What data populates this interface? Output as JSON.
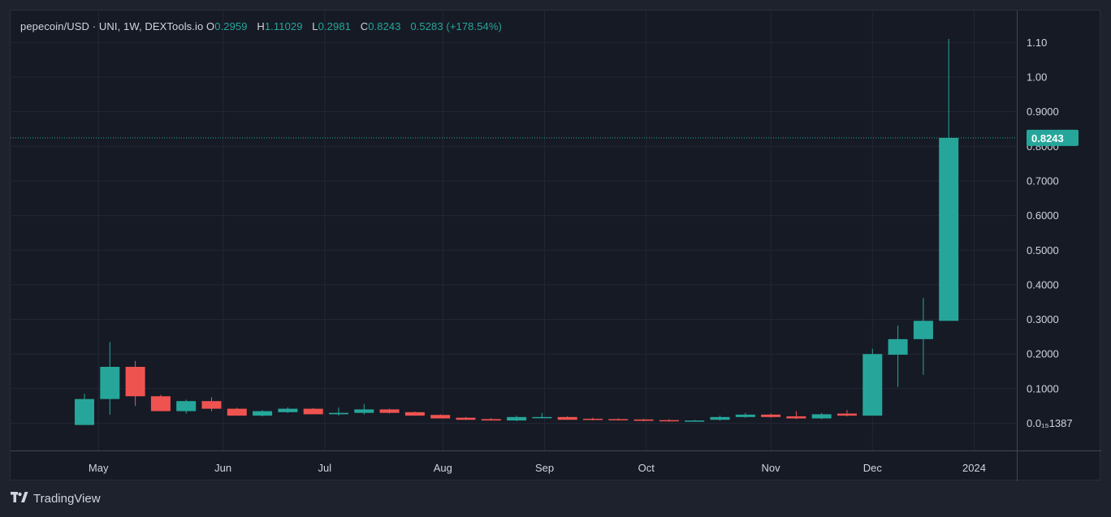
{
  "legend": {
    "symbol": "pepecoin/USD · UNI, 1W, DEXTools.io",
    "open_key": "O",
    "open": "0.2959",
    "high_key": "H",
    "high": "1.11029",
    "low_key": "L",
    "low": "0.2981",
    "close_key": "C",
    "close": "0.8243",
    "change": "0.5283 (+178.54%)"
  },
  "branding": {
    "name": "TradingView"
  },
  "colors": {
    "up": "#26a69a",
    "down": "#ef5350",
    "background": "#161a25",
    "grid": "#232733",
    "text": "#d1d4dc"
  },
  "chart_data": {
    "type": "candlestick",
    "interval": "1W",
    "y_scale": "linear",
    "ylim": [
      -0.08,
      1.2
    ],
    "y_ticks": [
      {
        "value": 0.0,
        "label": "0.0₁₅1387"
      },
      {
        "value": 0.1,
        "label": "0.1000"
      },
      {
        "value": 0.2,
        "label": "0.2000"
      },
      {
        "value": 0.3,
        "label": "0.3000"
      },
      {
        "value": 0.4,
        "label": "0.4000"
      },
      {
        "value": 0.5,
        "label": "0.5000"
      },
      {
        "value": 0.6,
        "label": "0.6000"
      },
      {
        "value": 0.7,
        "label": "0.7000"
      },
      {
        "value": 0.8,
        "label": "0.8000"
      },
      {
        "value": 0.9,
        "label": "0.9000"
      },
      {
        "value": 1.0,
        "label": "1.00"
      },
      {
        "value": 1.1,
        "label": "1.10"
      }
    ],
    "x_ticks": [
      {
        "index": 0.55,
        "label": "May"
      },
      {
        "index": 5.45,
        "label": "Jun"
      },
      {
        "index": 9.45,
        "label": "Jul"
      },
      {
        "index": 14.1,
        "label": "Aug"
      },
      {
        "index": 18.1,
        "label": "Sep"
      },
      {
        "index": 22.1,
        "label": "Oct"
      },
      {
        "index": 27.0,
        "label": "Nov"
      },
      {
        "index": 31.0,
        "label": "Dec"
      },
      {
        "index": 35.0,
        "label": "2024"
      }
    ],
    "last_price": {
      "value": 0.8243,
      "label": "0.8243"
    },
    "candles": [
      {
        "o": -0.005,
        "h": 0.085,
        "l": -0.005,
        "c": 0.07
      },
      {
        "o": 0.07,
        "h": 0.235,
        "l": 0.025,
        "c": 0.163
      },
      {
        "o": 0.163,
        "h": 0.18,
        "l": 0.05,
        "c": 0.078
      },
      {
        "o": 0.078,
        "h": 0.082,
        "l": 0.035,
        "c": 0.035
      },
      {
        "o": 0.035,
        "h": 0.068,
        "l": 0.028,
        "c": 0.064
      },
      {
        "o": 0.064,
        "h": 0.075,
        "l": 0.035,
        "c": 0.042
      },
      {
        "o": 0.042,
        "h": 0.045,
        "l": 0.022,
        "c": 0.022
      },
      {
        "o": 0.022,
        "h": 0.038,
        "l": 0.02,
        "c": 0.035
      },
      {
        "o": 0.032,
        "h": 0.046,
        "l": 0.03,
        "c": 0.042
      },
      {
        "o": 0.042,
        "h": 0.044,
        "l": 0.026,
        "c": 0.026
      },
      {
        "o": 0.026,
        "h": 0.045,
        "l": 0.022,
        "c": 0.03
      },
      {
        "o": 0.03,
        "h": 0.056,
        "l": 0.025,
        "c": 0.04
      },
      {
        "o": 0.04,
        "h": 0.042,
        "l": 0.028,
        "c": 0.03
      },
      {
        "o": 0.032,
        "h": 0.034,
        "l": 0.022,
        "c": 0.022
      },
      {
        "o": 0.024,
        "h": 0.026,
        "l": 0.014,
        "c": 0.014
      },
      {
        "o": 0.016,
        "h": 0.018,
        "l": 0.01,
        "c": 0.01
      },
      {
        "o": 0.012,
        "h": 0.015,
        "l": 0.008,
        "c": 0.008
      },
      {
        "o": 0.008,
        "h": 0.022,
        "l": 0.006,
        "c": 0.018
      },
      {
        "o": 0.016,
        "h": 0.03,
        "l": 0.014,
        "c": 0.018
      },
      {
        "o": 0.018,
        "h": 0.02,
        "l": 0.01,
        "c": 0.01
      },
      {
        "o": 0.013,
        "h": 0.016,
        "l": 0.008,
        "c": 0.01
      },
      {
        "o": 0.012,
        "h": 0.014,
        "l": 0.008,
        "c": 0.009
      },
      {
        "o": 0.011,
        "h": 0.013,
        "l": 0.006,
        "c": 0.007
      },
      {
        "o": 0.009,
        "h": 0.012,
        "l": 0.005,
        "c": 0.006
      },
      {
        "o": 0.006,
        "h": 0.01,
        "l": 0.005,
        "c": 0.008
      },
      {
        "o": 0.01,
        "h": 0.022,
        "l": 0.008,
        "c": 0.018
      },
      {
        "o": 0.018,
        "h": 0.03,
        "l": 0.016,
        "c": 0.025
      },
      {
        "o": 0.025,
        "h": 0.028,
        "l": 0.016,
        "c": 0.018
      },
      {
        "o": 0.02,
        "h": 0.035,
        "l": 0.012,
        "c": 0.014
      },
      {
        "o": 0.014,
        "h": 0.03,
        "l": 0.012,
        "c": 0.026
      },
      {
        "o": 0.028,
        "h": 0.038,
        "l": 0.02,
        "c": 0.022
      },
      {
        "o": 0.022,
        "h": 0.215,
        "l": 0.022,
        "c": 0.2
      },
      {
        "o": 0.198,
        "h": 0.282,
        "l": 0.105,
        "c": 0.243
      },
      {
        "o": 0.243,
        "h": 0.362,
        "l": 0.14,
        "c": 0.2959
      },
      {
        "o": 0.2959,
        "h": 1.11029,
        "l": 0.2981,
        "c": 0.8243
      }
    ]
  }
}
